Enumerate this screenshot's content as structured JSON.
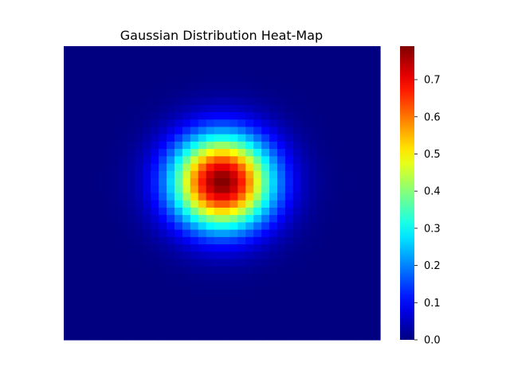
{
  "chart_data": {
    "type": "heatmap",
    "title": "Gaussian Distribution Heat-Map",
    "xlabel": "",
    "ylabel": "",
    "grid_size": [
      40,
      40
    ],
    "colormap": "jet",
    "function": {
      "kind": "gaussian-2d",
      "peak_value": 0.79,
      "center_col": 19.5,
      "center_row": 18.0,
      "sigma_cells": 4.4
    },
    "axes_visible": false,
    "grid": false,
    "colorbar": {
      "position": "right",
      "vmin": 0.0,
      "vmax": 0.79,
      "ticks": [
        0.0,
        0.1,
        0.2,
        0.3,
        0.4,
        0.5,
        0.6,
        0.7
      ],
      "tick_labels": [
        "0.0",
        "0.1",
        "0.2",
        "0.3",
        "0.4",
        "0.5",
        "0.6",
        "0.7"
      ]
    }
  }
}
